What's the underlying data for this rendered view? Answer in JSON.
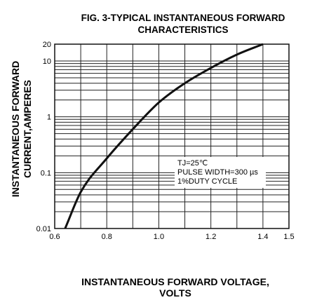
{
  "chart_data": {
    "type": "line",
    "title": [
      "FIG. 3-TYPICAL INSTANTANEOUS FORWARD",
      "CHARACTERISTICS"
    ],
    "xlabel": [
      "INSTANTANEOUS FORWARD VOLTAGE,",
      "VOLTS"
    ],
    "ylabel": [
      "INSTANTANEOUS FORWARD",
      "CURRENT,AMPERES"
    ],
    "xlim": [
      0.6,
      1.5
    ],
    "ylim": [
      0.01,
      20
    ],
    "yscale": "log",
    "grid": true,
    "x_ticks": [
      {
        "value": 0.6,
        "label": "0.6"
      },
      {
        "value": 0.8,
        "label": "0.8"
      },
      {
        "value": 1.0,
        "label": "1.0"
      },
      {
        "value": 1.2,
        "label": "1.2"
      },
      {
        "value": 1.4,
        "label": "1.4"
      },
      {
        "value": 1.5,
        "label": "1.5"
      }
    ],
    "y_ticks": [
      {
        "value": 0.01,
        "label": "0.01"
      },
      {
        "value": 0.1,
        "label": "0.1"
      },
      {
        "value": 1,
        "label": "1"
      },
      {
        "value": 10,
        "label": "10"
      },
      {
        "value": 20,
        "label": "20"
      }
    ],
    "annotation": [
      "TJ=25℃",
      "PULSE WIDTH=300 µs",
      "1%DUTY CYCLE"
    ],
    "series": [
      {
        "x": [
          0.64,
          0.7,
          0.8,
          0.9,
          1.0,
          1.1,
          1.2,
          1.3,
          1.4
        ],
        "y": [
          0.01,
          0.045,
          0.18,
          0.6,
          1.8,
          4.0,
          7.5,
          13,
          20
        ]
      }
    ]
  }
}
